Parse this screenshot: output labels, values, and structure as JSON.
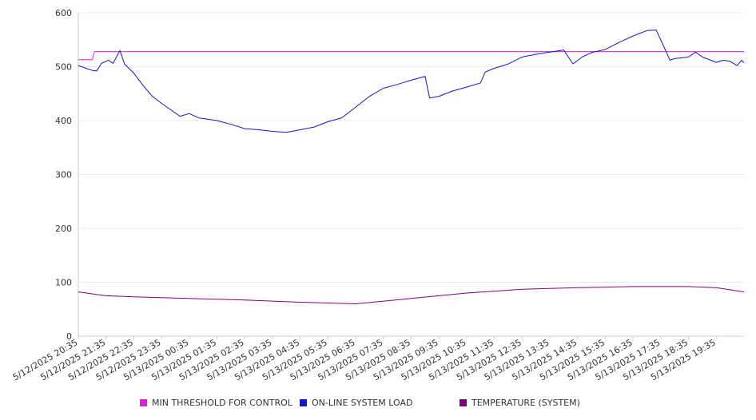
{
  "chart_data": {
    "type": "line",
    "title": "",
    "xlabel": "",
    "ylabel": "",
    "ylim": [
      0,
      600
    ],
    "yticks": [
      "0",
      "100",
      "200",
      "300",
      "400",
      "500",
      "600"
    ],
    "grid": "horizontal",
    "legend_position": "bottom",
    "x_tick_labels": [
      "5/12/2025 20:35",
      "5/12/2025 21:35",
      "5/12/2025 22:35",
      "5/12/2025 23:35",
      "5/13/2025 00:35",
      "5/13/2025 01:35",
      "5/13/2025 02:35",
      "5/13/2025 03:35",
      "5/13/2025 04:35",
      "5/13/2025 05:35",
      "5/13/2025 06:35",
      "5/13/2025 07:35",
      "5/13/2025 08:35",
      "5/13/2025 09:35",
      "5/13/2025 10:35",
      "5/13/2025 11:35",
      "5/13/2025 12:35",
      "5/13/2025 13:35",
      "5/13/2025 14:35",
      "5/13/2025 15:35",
      "5/13/2025 16:35",
      "5/13/2025 17:35",
      "5/13/2025 18:35",
      "5/13/2025 19:35"
    ],
    "x_range": [
      "5/12/2025 20:35",
      "5/13/2025 20:35"
    ],
    "series": [
      {
        "name": "MIN THRESHOLD FOR CONTROL",
        "color": "#e01ee0",
        "points": [
          [
            "5/12/2025 20:35",
            513
          ],
          [
            "5/12/2025 21:05",
            513
          ],
          [
            "5/12/2025 21:10",
            528
          ],
          [
            "5/13/2025 20:35",
            528
          ]
        ]
      },
      {
        "name": "ON-LINE SYSTEM LOAD",
        "color": "#1414d2",
        "points": [
          [
            "5/12/2025 20:35",
            502
          ],
          [
            "5/12/2025 21:05",
            493
          ],
          [
            "5/12/2025 21:15",
            492
          ],
          [
            "5/12/2025 21:25",
            506
          ],
          [
            "5/12/2025 21:40",
            512
          ],
          [
            "5/12/2025 21:50",
            506
          ],
          [
            "5/12/2025 22:05",
            530
          ],
          [
            "5/12/2025 22:15",
            505
          ],
          [
            "5/12/2025 22:35",
            488
          ],
          [
            "5/12/2025 22:55",
            465
          ],
          [
            "5/12/2025 23:15",
            445
          ],
          [
            "5/12/2025 23:35",
            432
          ],
          [
            "5/12/2025 23:55",
            420
          ],
          [
            "5/13/2025 00:15",
            408
          ],
          [
            "5/13/2025 00:35",
            413
          ],
          [
            "5/13/2025 00:55",
            405
          ],
          [
            "5/13/2025 01:35",
            400
          ],
          [
            "5/13/2025 02:05",
            393
          ],
          [
            "5/13/2025 02:35",
            385
          ],
          [
            "5/13/2025 03:05",
            383
          ],
          [
            "5/13/2025 03:35",
            380
          ],
          [
            "5/13/2025 04:05",
            378
          ],
          [
            "5/13/2025 04:35",
            383
          ],
          [
            "5/13/2025 05:05",
            388
          ],
          [
            "5/13/2025 05:35",
            398
          ],
          [
            "5/13/2025 06:05",
            405
          ],
          [
            "5/13/2025 06:35",
            425
          ],
          [
            "5/13/2025 07:05",
            445
          ],
          [
            "5/13/2025 07:35",
            460
          ],
          [
            "5/13/2025 08:05",
            467
          ],
          [
            "5/13/2025 08:35",
            475
          ],
          [
            "5/13/2025 09:05",
            482
          ],
          [
            "5/13/2025 09:15",
            442
          ],
          [
            "5/13/2025 09:35",
            445
          ],
          [
            "5/13/2025 10:05",
            455
          ],
          [
            "5/13/2025 10:35",
            462
          ],
          [
            "5/13/2025 11:05",
            470
          ],
          [
            "5/13/2025 11:15",
            490
          ],
          [
            "5/13/2025 11:35",
            497
          ],
          [
            "5/13/2025 12:05",
            505
          ],
          [
            "5/13/2025 12:35",
            518
          ],
          [
            "5/13/2025 13:05",
            523
          ],
          [
            "5/13/2025 13:35",
            527
          ],
          [
            "5/13/2025 14:05",
            531
          ],
          [
            "5/13/2025 14:25",
            505
          ],
          [
            "5/13/2025 14:45",
            518
          ],
          [
            "5/13/2025 15:05",
            526
          ],
          [
            "5/13/2025 15:35",
            532
          ],
          [
            "5/13/2025 16:05",
            545
          ],
          [
            "5/13/2025 16:35",
            557
          ],
          [
            "5/13/2025 17:05",
            567
          ],
          [
            "5/13/2025 17:25",
            568
          ],
          [
            "5/13/2025 17:40",
            540
          ],
          [
            "5/13/2025 17:55",
            512
          ],
          [
            "5/13/2025 18:05",
            515
          ],
          [
            "5/13/2025 18:35",
            518
          ],
          [
            "5/13/2025 18:50",
            527
          ],
          [
            "5/13/2025 19:05",
            518
          ],
          [
            "5/13/2025 19:35",
            508
          ],
          [
            "5/13/2025 19:50",
            512
          ],
          [
            "5/13/2025 20:05",
            510
          ],
          [
            "5/13/2025 20:20",
            502
          ],
          [
            "5/13/2025 20:30",
            512
          ],
          [
            "5/13/2025 20:35",
            507
          ]
        ]
      },
      {
        "name": "TEMPERATURE (SYSTEM)",
        "color": "#800080",
        "points": [
          [
            "5/12/2025 20:35",
            82
          ],
          [
            "5/12/2025 21:35",
            75
          ],
          [
            "5/12/2025 22:35",
            73
          ],
          [
            "5/13/2025 00:35",
            70
          ],
          [
            "5/13/2025 02:35",
            67
          ],
          [
            "5/13/2025 04:35",
            63
          ],
          [
            "5/13/2025 06:35",
            60
          ],
          [
            "5/13/2025 08:35",
            70
          ],
          [
            "5/13/2025 10:35",
            80
          ],
          [
            "5/13/2025 12:35",
            87
          ],
          [
            "5/13/2025 14:35",
            90
          ],
          [
            "5/13/2025 16:35",
            92
          ],
          [
            "5/13/2025 18:35",
            92
          ],
          [
            "5/13/2025 19:35",
            90
          ],
          [
            "5/13/2025 20:35",
            82
          ]
        ]
      }
    ]
  }
}
